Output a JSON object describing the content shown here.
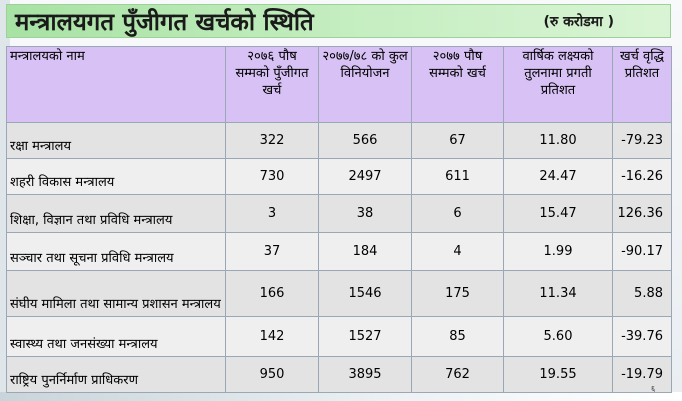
{
  "slide": {
    "title": "मन्त्रालयगत पुँजीगत खर्चको स्थिति",
    "unit": "(रु करोडमा )",
    "page_number": "६"
  },
  "table": {
    "headers": [
      "मन्त्रालयको नाम",
      "२०७६ पौष सम्मको पुँजीगत खर्च",
      "२०७७/७८ को कुल विनियोजन",
      "२०७७ पौष सम्मको खर्च",
      "वार्षिक लक्ष्यको तुलनामा प्रगती प्रतिशत",
      "खर्च वृद्धि प्रतिशत"
    ],
    "rows": [
      {
        "name": "रक्षा मन्त्रालय",
        "prev_exp": "322",
        "allocation": "566",
        "exp": "67",
        "progress": "11.80",
        "growth": "-79.23"
      },
      {
        "name": "शहरी विकास मन्त्रालय",
        "prev_exp": "730",
        "allocation": "2497",
        "exp": "611",
        "progress": "24.47",
        "growth": "-16.26"
      },
      {
        "name": "शिक्षा, विज्ञान तथा प्रविधि मन्त्रालय",
        "prev_exp": "3",
        "allocation": "38",
        "exp": "6",
        "progress": "15.47",
        "growth": "126.36"
      },
      {
        "name": "सञ्चार तथा सूचना प्रविधि मन्त्रालय",
        "prev_exp": "37",
        "allocation": "184",
        "exp": "4",
        "progress": "1.99",
        "growth": "-90.17"
      },
      {
        "name": "संघीय मामिला तथा सामान्य प्रशासन मन्त्रालय",
        "prev_exp": "166",
        "allocation": "1546",
        "exp": "175",
        "progress": "11.34",
        "growth": "5.88"
      },
      {
        "name": "स्वास्थ्य तथा जनसंख्या मन्त्रालय",
        "prev_exp": "142",
        "allocation": "1527",
        "exp": "85",
        "progress": "5.60",
        "growth": "-39.76"
      },
      {
        "name": "राष्ट्रिय पुनर्निर्माण प्राधिकरण",
        "prev_exp": "950",
        "allocation": "3895",
        "exp": "762",
        "progress": "19.55",
        "growth": "-19.79"
      }
    ]
  },
  "colors": {
    "title_bg": "#a8e2a4",
    "header_bg": "#d8c2f5",
    "row_bg": "#e3e3e3",
    "row_alt_bg": "#efefef",
    "grid": "#9aa7b5"
  }
}
